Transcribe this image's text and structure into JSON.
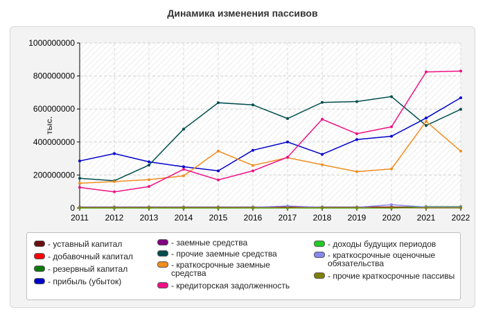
{
  "chart_data": {
    "type": "line",
    "title": "Динамика изменения пассивов",
    "ylabel": "тыс.",
    "xlabel": "",
    "categories": [
      "2011",
      "2012",
      "2013",
      "2014",
      "2015",
      "2016",
      "2017",
      "2018",
      "2019",
      "2020",
      "2021",
      "2022"
    ],
    "ylim": [
      0,
      1000000000
    ],
    "yticks": [
      0,
      200000000,
      400000000,
      600000000,
      800000000,
      1000000000
    ],
    "ytick_labels": [
      "0",
      "200000000",
      "400000000",
      "600000000",
      "800000000",
      "1000000000"
    ],
    "grid": true,
    "legend_position": "bottom",
    "series": [
      {
        "name": "- уставный капитал",
        "color": "#6b0f0f",
        "values": [
          6000000,
          6000000,
          6000000,
          6000000,
          6000000,
          6000000,
          6000000,
          6000000,
          6000000,
          6000000,
          6000000,
          6000000
        ]
      },
      {
        "name": "- добавочный капитал",
        "color": "#ff0000",
        "values": [
          3000000,
          3000000,
          3000000,
          3000000,
          3000000,
          3000000,
          3000000,
          3000000,
          3000000,
          3000000,
          3000000,
          3000000
        ]
      },
      {
        "name": "- резервный капитал",
        "color": "#0a7a0a",
        "values": [
          1000000,
          1000000,
          1000000,
          1000000,
          1000000,
          1000000,
          1000000,
          1000000,
          1000000,
          1000000,
          8000000,
          8000000
        ]
      },
      {
        "name": "- прибыль (убыток)",
        "color": "#0000cc",
        "values": [
          285000000,
          330000000,
          280000000,
          250000000,
          225000000,
          350000000,
          400000000,
          325000000,
          415000000,
          435000000,
          545000000,
          668000000
        ]
      },
      {
        "name": "- заемные средства",
        "color": "#800080",
        "values": [
          2000000,
          2000000,
          2000000,
          2000000,
          2000000,
          2000000,
          2000000,
          2000000,
          2000000,
          2000000,
          2000000,
          2000000
        ]
      },
      {
        "name": "- прочие заемные средства",
        "color": "#004d4d",
        "values": [
          180000000,
          165000000,
          260000000,
          478000000,
          638000000,
          625000000,
          542000000,
          640000000,
          645000000,
          675000000,
          500000000,
          598000000
        ]
      },
      {
        "name": "- краткосрочные заемные средства",
        "color": "#f28c1f",
        "values": [
          150000000,
          160000000,
          172000000,
          195000000,
          345000000,
          258000000,
          305000000,
          262000000,
          220000000,
          237000000,
          525000000,
          345000000
        ]
      },
      {
        "name": "- кредиторская задолженность",
        "color": "#ee1185",
        "values": [
          125000000,
          98000000,
          130000000,
          235000000,
          170000000,
          225000000,
          308000000,
          538000000,
          450000000,
          492000000,
          825000000,
          830000000
        ]
      },
      {
        "name": "- доходы будущих периодов",
        "color": "#22cc22",
        "values": [
          0,
          0,
          0,
          0,
          0,
          0,
          0,
          0,
          0,
          0,
          3000000,
          3000000
        ]
      },
      {
        "name": "- краткосрочные оценочные обязательства",
        "color": "#8888ee",
        "values": [
          4000000,
          4000000,
          4000000,
          4000000,
          4000000,
          4000000,
          12000000,
          4000000,
          4000000,
          20000000,
          6000000,
          6000000
        ]
      },
      {
        "name": "- прочие краткосрочные пассивы",
        "color": "#808000",
        "values": [
          1500000,
          1500000,
          1500000,
          1500000,
          1500000,
          1500000,
          1500000,
          1500000,
          1500000,
          1500000,
          1500000,
          1500000
        ]
      }
    ]
  }
}
